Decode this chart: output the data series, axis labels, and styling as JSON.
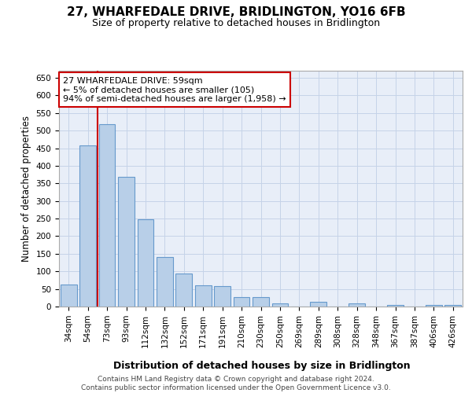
{
  "title": "27, WHARFEDALE DRIVE, BRIDLINGTON, YO16 6FB",
  "subtitle": "Size of property relative to detached houses in Bridlington",
  "xlabel": "Distribution of detached houses by size in Bridlington",
  "ylabel": "Number of detached properties",
  "footer_line1": "Contains HM Land Registry data © Crown copyright and database right 2024.",
  "footer_line2": "Contains public sector information licensed under the Open Government Licence v3.0.",
  "categories": [
    "34sqm",
    "54sqm",
    "73sqm",
    "93sqm",
    "112sqm",
    "132sqm",
    "152sqm",
    "171sqm",
    "191sqm",
    "210sqm",
    "230sqm",
    "250sqm",
    "269sqm",
    "289sqm",
    "308sqm",
    "328sqm",
    "348sqm",
    "367sqm",
    "387sqm",
    "406sqm",
    "426sqm"
  ],
  "values": [
    63,
    457,
    519,
    368,
    249,
    140,
    93,
    61,
    57,
    26,
    26,
    10,
    0,
    13,
    0,
    8,
    0,
    5,
    0,
    5,
    5
  ],
  "bar_color": "#b8cfe8",
  "bar_edge_color": "#6699cc",
  "background_color": "#e8eef8",
  "grid_color": "#c5d3e8",
  "vline_color": "#cc0000",
  "vline_x": 1.5,
  "annotation_text": "27 WHARFEDALE DRIVE: 59sqm\n← 5% of detached houses are smaller (105)\n94% of semi-detached houses are larger (1,958) →",
  "annotation_box_facecolor": "#ffffff",
  "annotation_box_edgecolor": "#cc0000",
  "ylim": [
    0,
    670
  ],
  "yticks": [
    0,
    50,
    100,
    150,
    200,
    250,
    300,
    350,
    400,
    450,
    500,
    550,
    600,
    650
  ],
  "title_fontsize": 11,
  "subtitle_fontsize": 9,
  "tick_fontsize": 7.5,
  "ylabel_fontsize": 8.5,
  "xlabel_fontsize": 9,
  "annotation_fontsize": 8,
  "footer_fontsize": 6.5
}
